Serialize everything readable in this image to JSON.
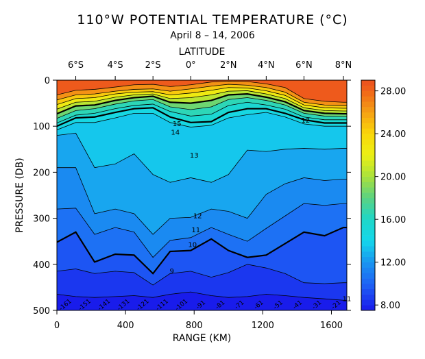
{
  "chart_data": {
    "type": "heatmap",
    "title": "110°W POTENTIAL TEMPERATURE (°C)",
    "subtitle": "April 8 – 14, 2006",
    "top_axis_label": "LATITUDE",
    "top_ticks": [
      "6°S",
      "4°S",
      "2°S",
      "0°",
      "2°N",
      "4°N",
      "6°N",
      "8°N"
    ],
    "top_tick_positions_km": [
      110,
      340,
      560,
      780,
      1000,
      1220,
      1440,
      1670
    ],
    "xlabel": "RANGE (KM)",
    "xlim": [
      0,
      1690
    ],
    "xticks": [
      0,
      400,
      800,
      1200,
      1600
    ],
    "ylabel": "PRESSURE (DB)",
    "ylim": [
      0,
      500
    ],
    "yticks": [
      0,
      100,
      200,
      300,
      400,
      500
    ],
    "colorbar_ticks": [
      "28.00",
      "24.00",
      "20.00",
      "16.00",
      "12.00",
      "8.00"
    ],
    "colorbar_range": [
      7.5,
      29
    ],
    "contour_labels": [
      {
        "text": "15",
        "x": 700,
        "y": 100
      },
      {
        "text": "14",
        "x": 690,
        "y": 118
      },
      {
        "text": "13",
        "x": 800,
        "y": 168
      },
      {
        "text": "12",
        "x": 820,
        "y": 300
      },
      {
        "text": "11",
        "x": 810,
        "y": 330
      },
      {
        "text": "10",
        "x": 790,
        "y": 362
      },
      {
        "text": "9",
        "x": 670,
        "y": 420
      },
      {
        "text": "12",
        "x": 1450,
        "y": 92
      },
      {
        "text": "11",
        "x": 1690,
        "y": 480
      }
    ],
    "bottom_labels": [
      "-161",
      "-151",
      "-141",
      "-131",
      "-121",
      "-111",
      "-101",
      "-91",
      "-81",
      "-71",
      "-61",
      "-51",
      "-41",
      "-31",
      "-21"
    ],
    "profile_x_km": [
      0,
      110,
      220,
      340,
      450,
      560,
      660,
      780,
      900,
      1000,
      1110,
      1220,
      1330,
      1440,
      1560,
      1670
    ],
    "isotherm_depths_db": {
      "8": [
        465,
        470,
        472,
        470,
        468,
        472,
        465,
        460,
        468,
        472,
        470,
        465,
        468,
        472,
        475,
        478
      ],
      "9": [
        415,
        410,
        420,
        415,
        418,
        445,
        420,
        415,
        428,
        418,
        400,
        408,
        420,
        440,
        442,
        440
      ],
      "10": [
        352,
        330,
        395,
        378,
        380,
        420,
        372,
        370,
        345,
        370,
        385,
        380,
        355,
        330,
        338,
        320
      ],
      "11": [
        280,
        278,
        335,
        320,
        330,
        385,
        348,
        342,
        320,
        335,
        350,
        322,
        295,
        268,
        272,
        268
      ],
      "12": [
        190,
        190,
        290,
        280,
        290,
        335,
        300,
        298,
        280,
        285,
        300,
        248,
        225,
        212,
        218,
        215
      ],
      "13": [
        120,
        115,
        190,
        182,
        160,
        205,
        222,
        212,
        222,
        205,
        152,
        155,
        150,
        148,
        150,
        148
      ],
      "14": [
        108,
        92,
        92,
        82,
        72,
        72,
        92,
        102,
        98,
        82,
        75,
        70,
        80,
        95,
        100,
        100
      ],
      "15": [
        100,
        82,
        80,
        70,
        62,
        60,
        80,
        92,
        90,
        70,
        62,
        62,
        72,
        86,
        93,
        93
      ],
      "16": [
        93,
        76,
        72,
        62,
        55,
        52,
        68,
        78,
        74,
        55,
        48,
        54,
        63,
        80,
        86,
        86
      ],
      "18": [
        83,
        66,
        62,
        52,
        45,
        42,
        58,
        64,
        58,
        42,
        38,
        44,
        54,
        72,
        78,
        79
      ],
      "20": [
        73,
        56,
        54,
        44,
        38,
        35,
        48,
        50,
        44,
        32,
        30,
        37,
        47,
        66,
        72,
        73
      ],
      "22": [
        63,
        48,
        46,
        37,
        32,
        30,
        40,
        38,
        32,
        24,
        23,
        30,
        40,
        60,
        66,
        67
      ],
      "24": [
        53,
        40,
        38,
        30,
        26,
        25,
        32,
        28,
        22,
        16,
        17,
        23,
        33,
        54,
        60,
        61
      ],
      "26": [
        43,
        32,
        30,
        24,
        20,
        19,
        24,
        19,
        13,
        9,
        11,
        16,
        26,
        48,
        54,
        55
      ],
      "28": [
        32,
        22,
        20,
        15,
        10,
        9,
        14,
        10,
        4,
        2,
        3,
        8,
        16,
        40,
        46,
        48
      ]
    }
  }
}
